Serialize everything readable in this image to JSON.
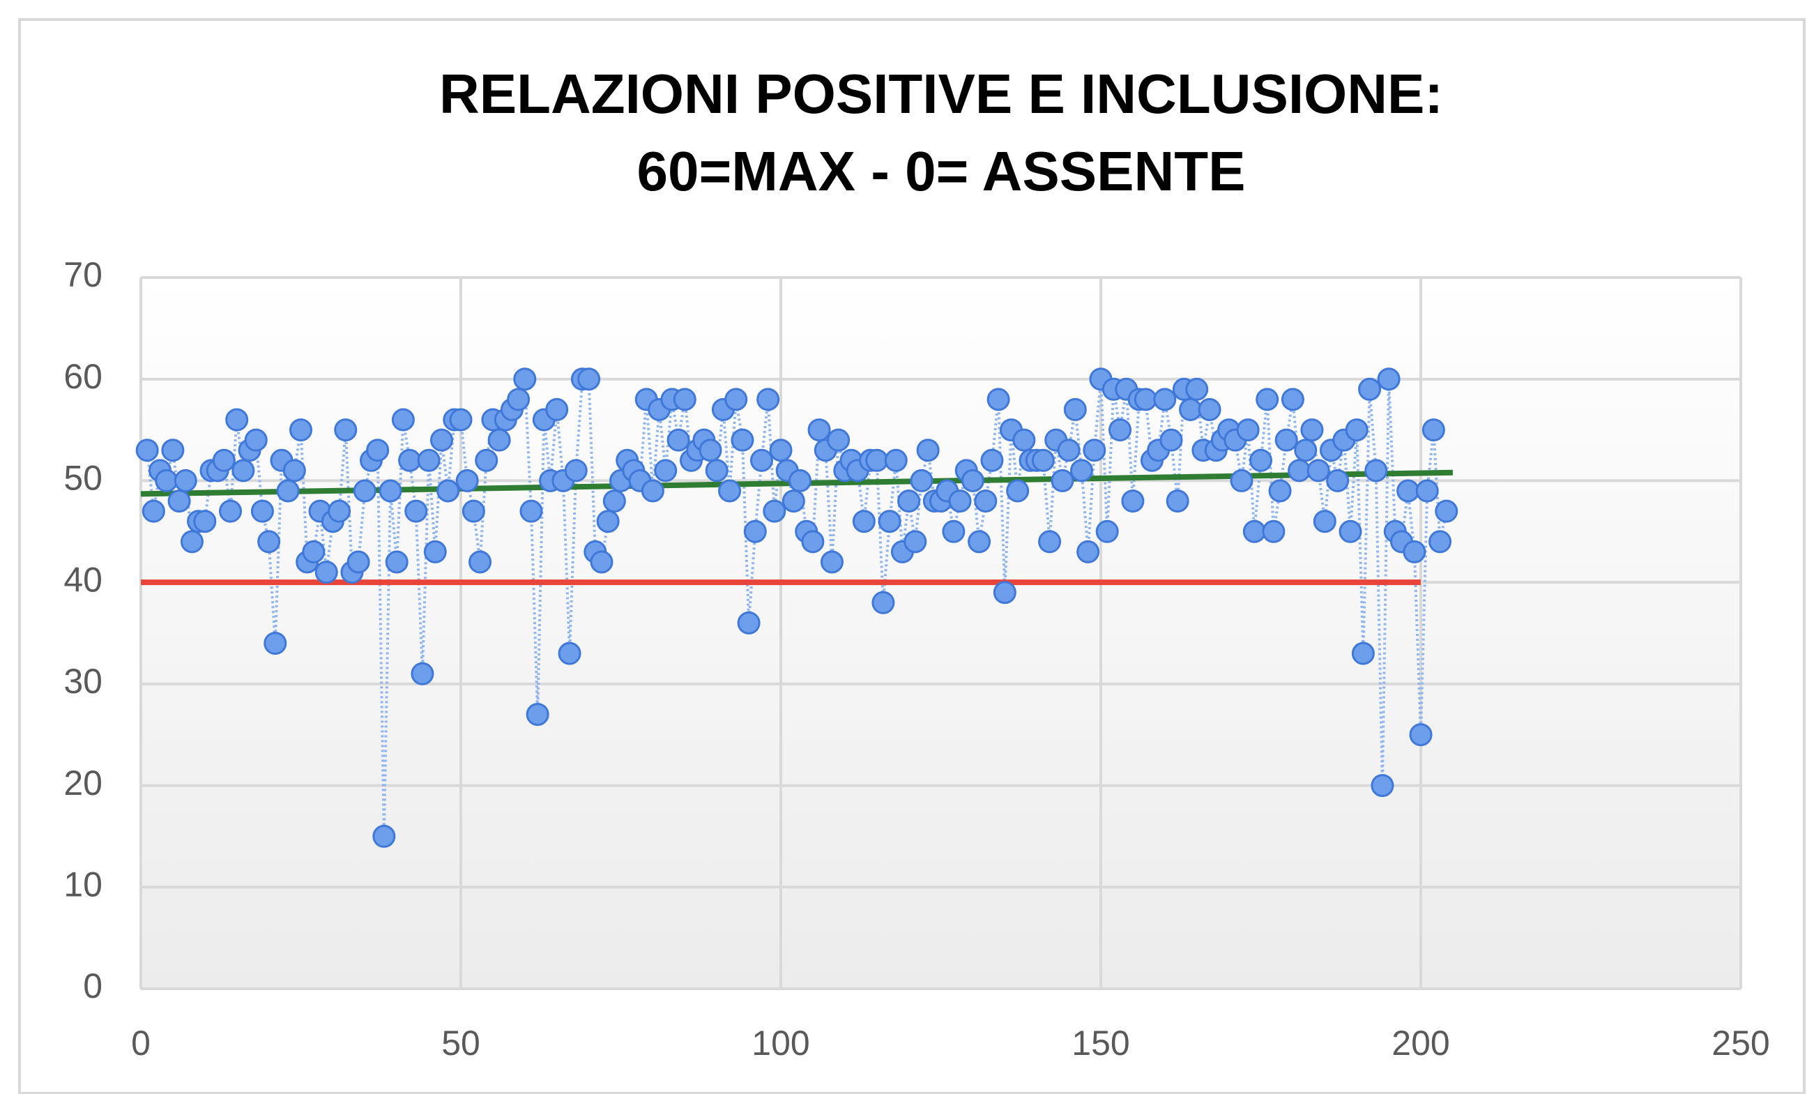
{
  "chart_data": {
    "type": "scatter",
    "title": [
      "RELAZIONI  POSITIVE  E INCLUSIONE:",
      "60=MAX  - 0= ASSENTE"
    ],
    "x": [
      1,
      2,
      3,
      4,
      5,
      6,
      7,
      8,
      9,
      10,
      11,
      12,
      13,
      14,
      15,
      16,
      17,
      18,
      19,
      20,
      21,
      22,
      23,
      24,
      25,
      26,
      27,
      28,
      29,
      30,
      31,
      32,
      33,
      34,
      35,
      36,
      37,
      38,
      39,
      40,
      41,
      42,
      43,
      44,
      45,
      46,
      47,
      48,
      49,
      50,
      51,
      52,
      53,
      54,
      55,
      56,
      57,
      58,
      59,
      60,
      61,
      62,
      63,
      64,
      65,
      66,
      67,
      68,
      69,
      70,
      71,
      72,
      73,
      74,
      75,
      76,
      77,
      78,
      79,
      80,
      81,
      82,
      83,
      84,
      85,
      86,
      87,
      88,
      89,
      90,
      91,
      92,
      93,
      94,
      95,
      96,
      97,
      98,
      99,
      100,
      101,
      102,
      103,
      104,
      105,
      106,
      107,
      108,
      109,
      110,
      111,
      112,
      113,
      114,
      115,
      116,
      117,
      118,
      119,
      120,
      121,
      122,
      123,
      124,
      125,
      126,
      127,
      128,
      129,
      130,
      131,
      132,
      133,
      134,
      135,
      136,
      137,
      138,
      139,
      140,
      141,
      142,
      143,
      144,
      145,
      146,
      147,
      148,
      149,
      150,
      151,
      152,
      153,
      154,
      155,
      156,
      157,
      158,
      159,
      160,
      161,
      162,
      163,
      164,
      165,
      166,
      167,
      168,
      169,
      170,
      171,
      172,
      173,
      174,
      175,
      176,
      177,
      178,
      179,
      180,
      181,
      182,
      183,
      184,
      185,
      186,
      187,
      188,
      189,
      190,
      191,
      192,
      193,
      194,
      195,
      196,
      197,
      198,
      199,
      200,
      201,
      202,
      203,
      204
    ],
    "values": [
      53,
      47,
      51,
      50,
      53,
      48,
      50,
      44,
      46,
      46,
      51,
      51,
      52,
      47,
      56,
      51,
      53,
      54,
      47,
      44,
      34,
      52,
      49,
      51,
      55,
      42,
      43,
      47,
      41,
      46,
      47,
      55,
      41,
      42,
      49,
      52,
      53,
      15,
      49,
      42,
      56,
      52,
      47,
      31,
      52,
      43,
      54,
      49,
      56,
      56,
      50,
      47,
      42,
      52,
      56,
      54,
      56,
      57,
      58,
      60,
      47,
      27,
      56,
      50,
      57,
      50,
      33,
      51,
      60,
      60,
      43,
      42,
      46,
      48,
      50,
      52,
      51,
      50,
      58,
      49,
      57,
      51,
      58,
      54,
      58,
      52,
      53,
      54,
      53,
      51,
      57,
      49,
      58,
      54,
      36,
      45,
      52,
      58,
      47,
      53,
      51,
      48,
      50,
      45,
      44,
      55,
      53,
      42,
      54,
      51,
      52,
      51,
      46,
      52,
      52,
      38,
      46,
      52,
      43,
      48,
      44,
      50,
      53,
      48,
      48,
      49,
      45,
      48,
      51,
      50,
      44,
      48,
      52,
      58,
      39,
      55,
      49,
      54,
      52,
      52,
      52,
      44,
      54,
      50,
      53,
      57,
      51,
      43,
      53,
      60,
      45,
      59,
      55,
      59,
      48,
      58,
      58,
      52,
      53,
      58,
      54,
      48,
      59,
      57,
      59,
      53,
      57,
      53,
      54,
      55,
      54,
      50,
      55,
      45,
      52,
      58,
      45,
      49,
      54,
      58,
      51,
      53,
      55,
      51,
      46,
      53,
      50,
      54,
      45,
      55,
      33,
      59,
      51,
      20,
      60,
      45,
      44,
      49,
      43,
      25,
      49,
      55,
      44,
      47
    ],
    "color": "#6d9eeb",
    "lines": [
      {
        "x": [
          0,
          205
        ],
        "values": [
          48.7,
          50.8
        ],
        "color": "#2e7d32"
      },
      {
        "x": [
          0,
          200
        ],
        "values": [
          40,
          40
        ],
        "color": "#e8443a"
      }
    ],
    "xlim": [
      0,
      250
    ],
    "xticks": [
      0,
      50,
      100,
      150,
      200,
      250
    ],
    "ylim": [
      0,
      70
    ],
    "yticks": [
      0,
      10,
      20,
      30,
      40,
      50,
      60,
      70
    ],
    "grid": true
  }
}
